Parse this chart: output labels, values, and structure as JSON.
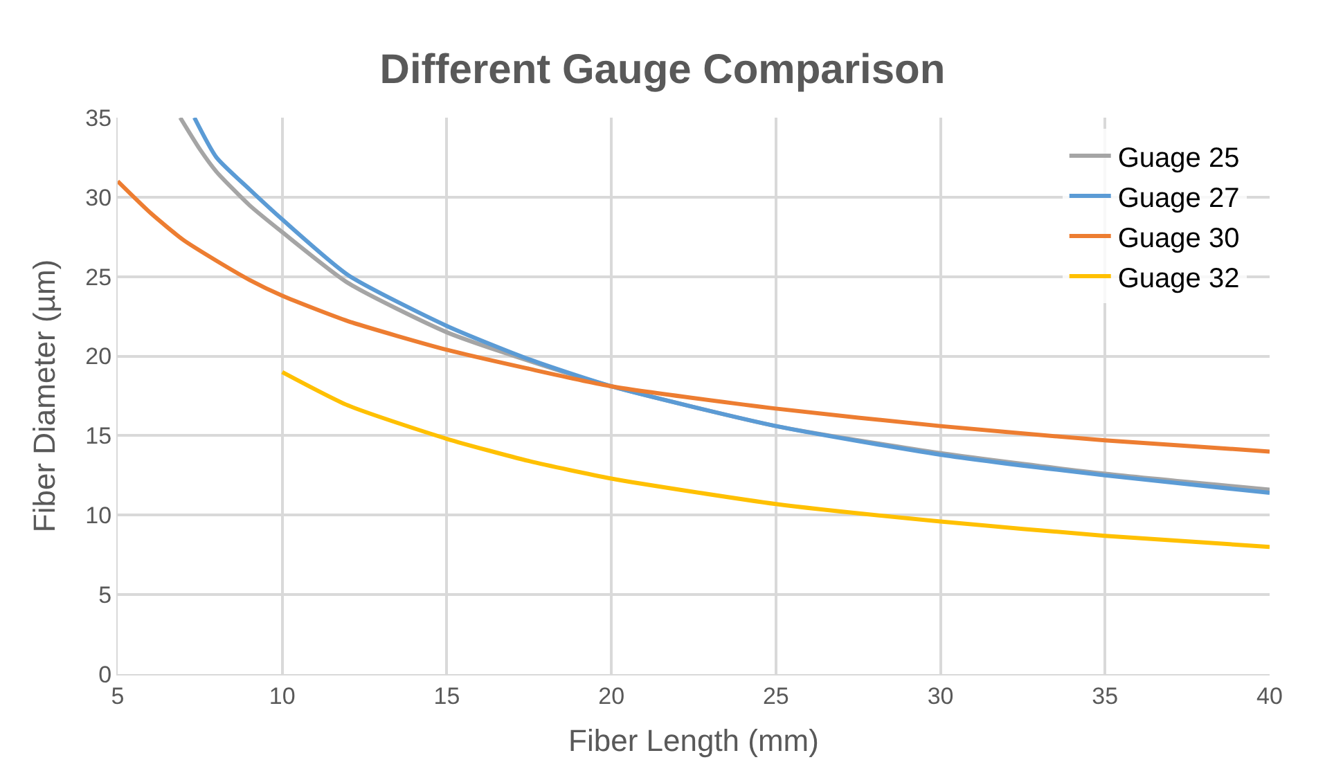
{
  "chart_data": {
    "type": "line",
    "title": "Different Gauge Comparison",
    "xlabel": "Fiber Length (mm)",
    "ylabel": "Fiber Diameter (µm)",
    "xlim": [
      5,
      40
    ],
    "xticks": [
      5,
      10,
      15,
      20,
      25,
      30,
      35,
      40
    ],
    "ylim": [
      0,
      35
    ],
    "yticks": [
      0,
      5,
      10,
      15,
      20,
      25,
      30,
      35
    ],
    "grid": true,
    "legend": "top right",
    "marker": "none",
    "line_style": "solid",
    "series": [
      {
        "name": "Guage 25",
        "color": "#a5a5a5",
        "x": [
          6.9,
          7.5,
          8,
          9,
          10,
          12,
          15,
          17.5,
          20,
          25,
          30,
          35,
          40
        ],
        "values": [
          35,
          33.0,
          31.6,
          29.5,
          27.8,
          24.6,
          21.5,
          19.7,
          18.1,
          15.6,
          13.9,
          12.6,
          11.6
        ]
      },
      {
        "name": "Guage 27",
        "color": "#5b9bd5",
        "x": [
          7.33,
          8,
          9,
          10,
          12,
          15,
          17.5,
          20,
          25,
          30,
          35,
          40
        ],
        "values": [
          35,
          32.5,
          30.5,
          28.6,
          25.1,
          21.9,
          19.8,
          18.1,
          15.6,
          13.8,
          12.5,
          11.4
        ]
      },
      {
        "name": "Guage 30",
        "color": "#ed7d31",
        "x": [
          5,
          6,
          7,
          8,
          9,
          10,
          12,
          15,
          17.5,
          20,
          25,
          30,
          35,
          40
        ],
        "values": [
          31,
          29.0,
          27.3,
          26.0,
          24.8,
          23.8,
          22.2,
          20.4,
          19.2,
          18.1,
          16.7,
          15.6,
          14.7,
          14.0
        ]
      },
      {
        "name": "Guage 32",
        "color": "#ffc000",
        "x": [
          10,
          12,
          15,
          17.5,
          20,
          25,
          30,
          35,
          40
        ],
        "values": [
          19.0,
          16.9,
          14.8,
          13.4,
          12.3,
          10.7,
          9.6,
          8.7,
          8.0
        ]
      }
    ]
  }
}
